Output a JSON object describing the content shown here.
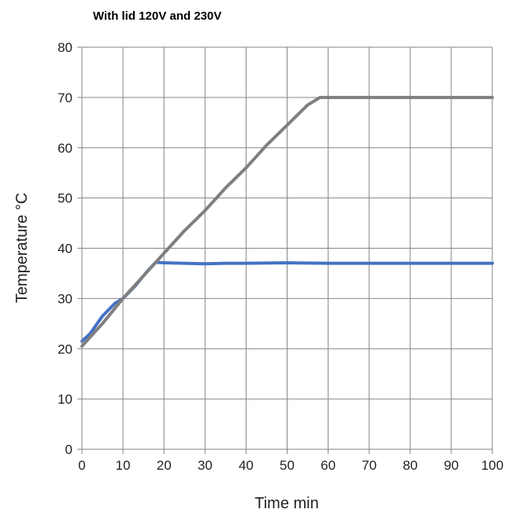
{
  "chart_data": {
    "type": "line",
    "title": "With lid 120V and 230V",
    "xlabel": "Time min",
    "ylabel": "Temperature °C",
    "xlim": [
      0,
      100
    ],
    "ylim": [
      0,
      80
    ],
    "xticks": [
      0,
      10,
      20,
      30,
      40,
      50,
      60,
      70,
      80,
      90,
      100
    ],
    "yticks": [
      0,
      10,
      20,
      30,
      40,
      50,
      60,
      70,
      80
    ],
    "grid": true,
    "legend": "none",
    "series": [
      {
        "color": "#4472c4",
        "x": [
          0,
          2,
          5,
          8,
          10,
          13,
          16,
          18,
          20,
          25,
          30,
          35,
          40,
          50,
          60,
          70,
          80,
          90,
          100
        ],
        "y": [
          21.5,
          23,
          26.5,
          29,
          30,
          32.5,
          35.5,
          37.2,
          37.1,
          37.0,
          36.9,
          37.0,
          37.0,
          37.1,
          37.0,
          37.0,
          37.0,
          37.0,
          37.0
        ]
      },
      {
        "color": "#7f7f7f",
        "x": [
          0,
          5,
          10,
          15,
          20,
          25,
          30,
          35,
          40,
          45,
          50,
          55,
          58,
          60,
          70,
          80,
          90,
          100
        ],
        "y": [
          20.5,
          25,
          30,
          34.5,
          39,
          43.5,
          47.5,
          52,
          56,
          60.5,
          64.5,
          68.5,
          70,
          70,
          70,
          70,
          70,
          70
        ]
      }
    ]
  }
}
